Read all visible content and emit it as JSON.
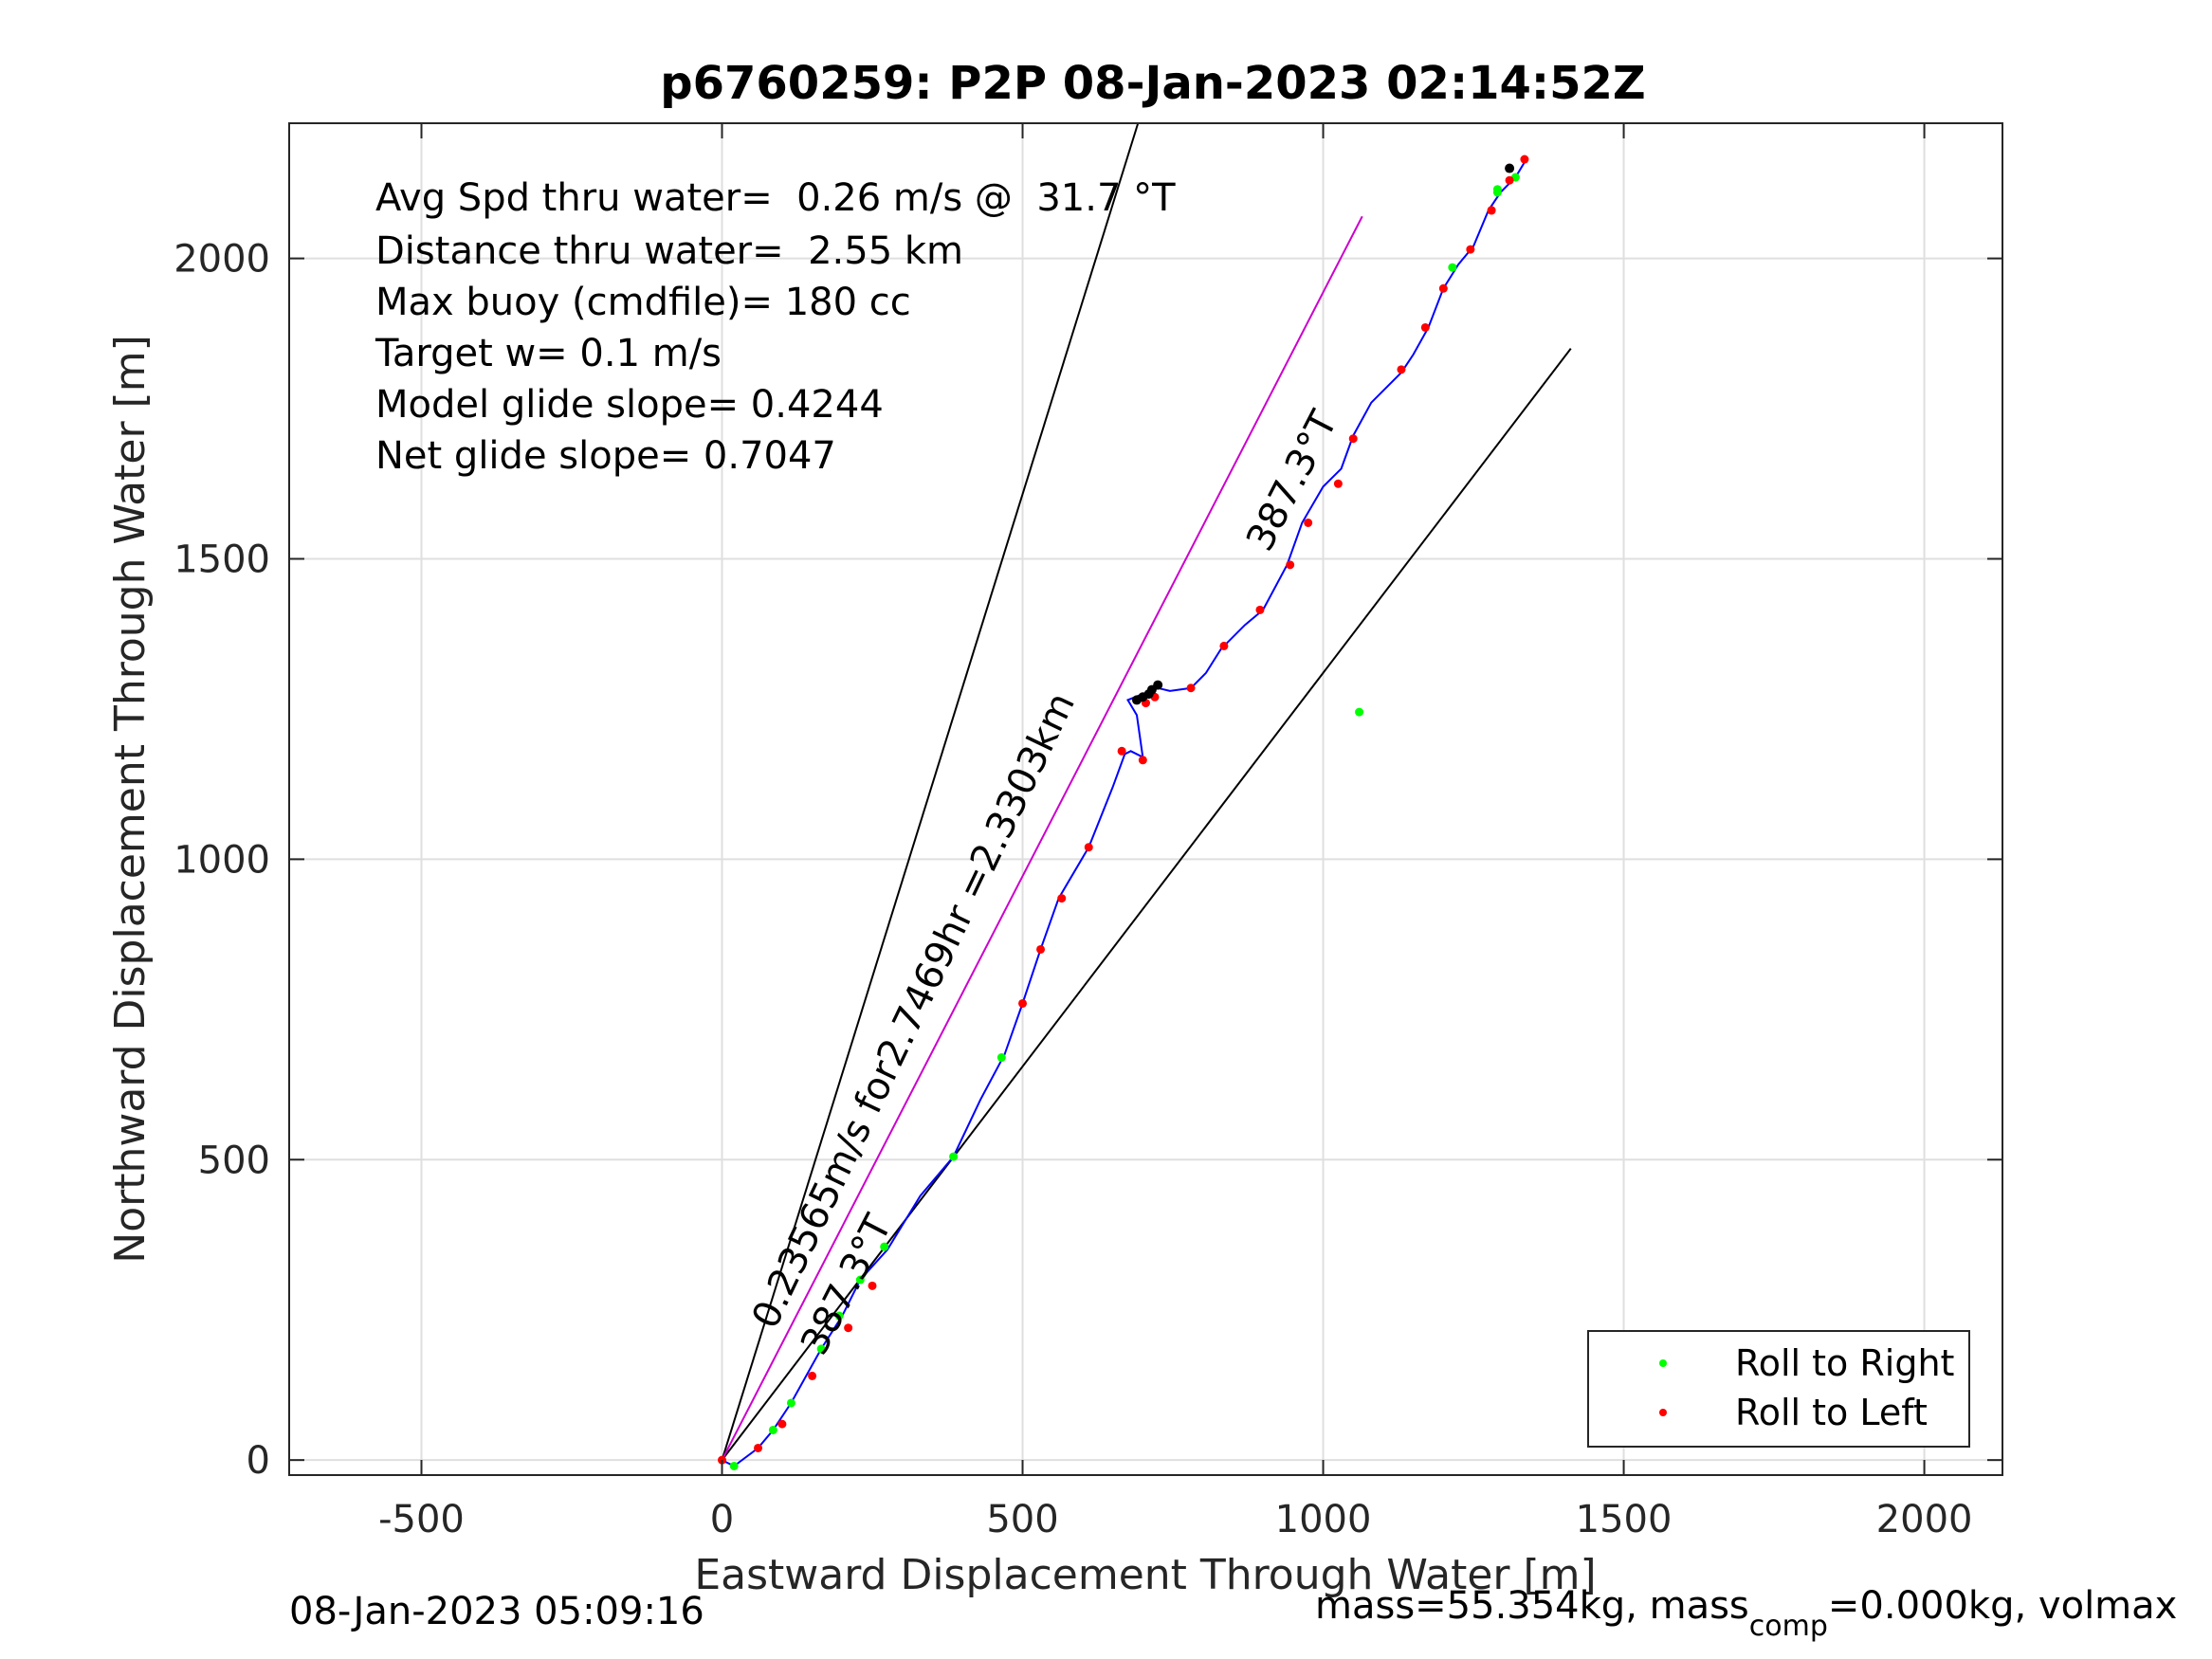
{
  "chart_data": {
    "type": "scatter",
    "title": "p6760259: P2P 08-Jan-2023 02:14:52Z",
    "xlabel": "Eastward Displacement Through Water [m]",
    "ylabel": "Northward Displacement Through Water [m]",
    "xlim": [
      -720,
      2130
    ],
    "ylim": [
      -25,
      2225
    ],
    "xticks": [
      -500,
      0,
      500,
      1000,
      1500,
      2000
    ],
    "yticks": [
      0,
      500,
      1000,
      1500,
      2000
    ],
    "grid": true,
    "annotations": [
      "Avg Spd thru water=  0.26 m/s @  31.7 °T",
      "Distance thru water=  2.55 km",
      "Max buoy (cmdfile)= 180 cc",
      "Target w= 0.1 m/s",
      "Model glide slope= 0.4244",
      "Net glide slope= 0.7047"
    ],
    "line_labels": {
      "upper_heading": "387.3°T",
      "lower_heading": "387.3°T",
      "center": "0.23565m/s for2.7469hr =2.3303km"
    },
    "reference_lines": [
      {
        "name": "bound-left",
        "color": "#000000",
        "x": [
          0,
          692
        ],
        "y": [
          0,
          2225
        ]
      },
      {
        "name": "bound-right",
        "color": "#000000",
        "x": [
          0,
          1412
        ],
        "y": [
          0,
          1850
        ]
      },
      {
        "name": "heading-line",
        "color": "#cc00cc",
        "x": [
          0,
          1065
        ],
        "y": [
          0,
          2070
        ]
      }
    ],
    "track": {
      "name": "track",
      "color": "#0000ff",
      "x": [
        0,
        20,
        60,
        85,
        115,
        165,
        200,
        230,
        275,
        330,
        385,
        430,
        470,
        500,
        530,
        560,
        610,
        650,
        670,
        680,
        700,
        690,
        675,
        700,
        725,
        745,
        780,
        805,
        830,
        870,
        900,
        940,
        965,
        1000,
        1030,
        1050,
        1080,
        1130,
        1150,
        1175,
        1200,
        1225,
        1250,
        1275,
        1295,
        1320,
        1335
      ],
      "y": [
        0,
        -10,
        20,
        50,
        95,
        185,
        240,
        300,
        350,
        440,
        505,
        600,
        675,
        760,
        850,
        935,
        1020,
        1120,
        1175,
        1180,
        1170,
        1240,
        1265,
        1275,
        1285,
        1280,
        1285,
        1310,
        1350,
        1390,
        1415,
        1490,
        1560,
        1620,
        1650,
        1705,
        1760,
        1810,
        1840,
        1885,
        1950,
        1990,
        2020,
        2080,
        2110,
        2135,
        2160
      ]
    },
    "series": [
      {
        "name": "Roll to Right",
        "color": "#00ff00",
        "x": [
          20,
          85,
          115,
          165,
          195,
          230,
          270,
          385,
          465,
          1060,
          1215,
          1290,
          1320,
          1290
        ],
        "y": [
          -10,
          50,
          95,
          185,
          240,
          300,
          355,
          505,
          670,
          1245,
          1985,
          2115,
          2135,
          2110
        ]
      },
      {
        "name": "Roll to Left",
        "color": "#ff0000",
        "x": [
          0,
          60,
          100,
          150,
          210,
          250,
          500,
          530,
          565,
          610,
          665,
          690,
          700,
          705,
          720,
          780,
          835,
          895,
          945,
          975,
          1025,
          1050,
          1130,
          1170,
          1200,
          1245,
          1280,
          1310,
          1335,
          1280
        ],
        "y": [
          0,
          20,
          60,
          140,
          220,
          290,
          760,
          850,
          935,
          1020,
          1180,
          1265,
          1165,
          1260,
          1270,
          1285,
          1355,
          1415,
          1490,
          1560,
          1625,
          1700,
          1815,
          1885,
          1950,
          2015,
          2080,
          2130,
          2165,
          2080
        ]
      }
    ],
    "black_points": {
      "x": [
        690,
        700,
        710,
        715,
        725,
        1310
      ],
      "y": [
        1265,
        1270,
        1275,
        1282,
        1290,
        2150
      ]
    },
    "legend": {
      "placement": "bottom-right",
      "entries": [
        "Roll to Right",
        "Roll to Left"
      ]
    },
    "footer_left": "08-Jan-2023 05:09:16",
    "footer_right_main": "mass=55.354kg, mass",
    "footer_right_sub": "comp",
    "footer_right_tail": "=0.000kg, volmax"
  }
}
